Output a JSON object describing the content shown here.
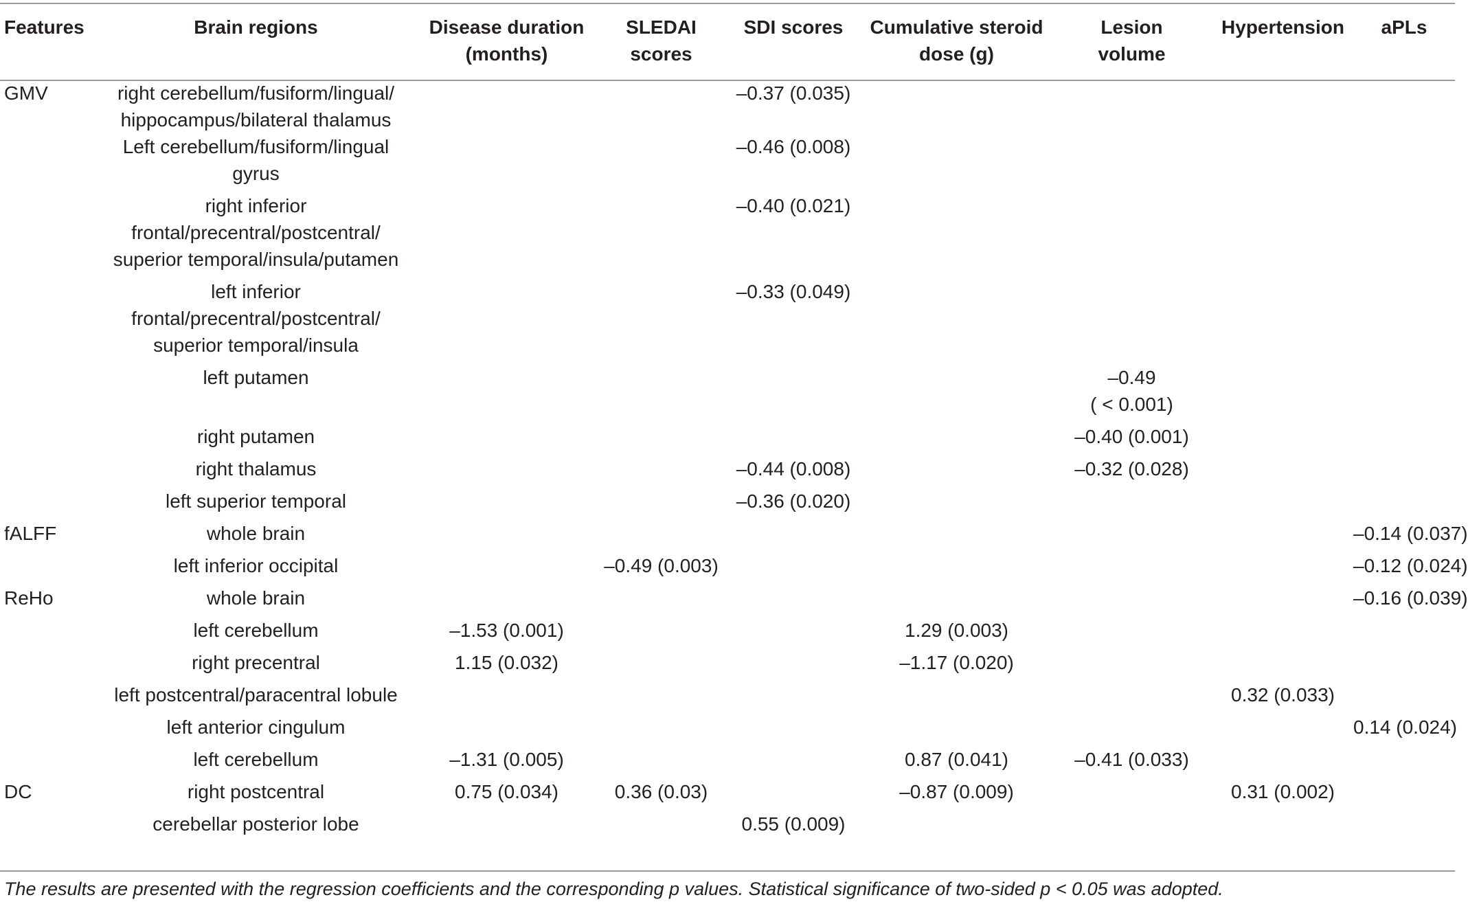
{
  "table": {
    "headers": [
      "Features",
      "Brain regions",
      "Disease duration\n(months)",
      "SLEDAI\nscores",
      "SDI scores",
      "Cumulative steroid\ndose (g)",
      "Lesion\nvolume",
      "Hypertension",
      "aPLs"
    ],
    "rows": [
      {
        "feature": "GMV",
        "region": "right cerebellum/fusiform/lingual/\nhippocampus/bilateral thalamus",
        "duration": "",
        "sledai": "",
        "sdi": "–0.37 (0.035)",
        "steroid": "",
        "lesion": "",
        "hypertension": "",
        "apls": ""
      },
      {
        "feature": "",
        "region": "Left cerebellum/fusiform/lingual\ngyrus",
        "duration": "",
        "sledai": "",
        "sdi": "–0.46 (0.008)",
        "steroid": "",
        "lesion": "",
        "hypertension": "",
        "apls": ""
      },
      {
        "feature": "",
        "region": "right inferior\nfrontal/precentral/postcentral/\nsuperior temporal/insula/putamen",
        "duration": "",
        "sledai": "",
        "sdi": "–0.40 (0.021)",
        "steroid": "",
        "lesion": "",
        "hypertension": "",
        "apls": ""
      },
      {
        "feature": "",
        "region": "left inferior\nfrontal/precentral/postcentral/\nsuperior temporal/insula",
        "duration": "",
        "sledai": "",
        "sdi": "–0.33 (0.049)",
        "steroid": "",
        "lesion": "",
        "hypertension": "",
        "apls": ""
      },
      {
        "feature": "",
        "region": "left putamen",
        "duration": "",
        "sledai": "",
        "sdi": "",
        "steroid": "",
        "lesion": "–0.49\n( < 0.001)",
        "hypertension": "",
        "apls": ""
      },
      {
        "feature": "",
        "region": "right putamen",
        "duration": "",
        "sledai": "",
        "sdi": "",
        "steroid": "",
        "lesion": "–0.40 (0.001)",
        "hypertension": "",
        "apls": ""
      },
      {
        "feature": "",
        "region": "right thalamus",
        "duration": "",
        "sledai": "",
        "sdi": "–0.44 (0.008)",
        "steroid": "",
        "lesion": "–0.32 (0.028)",
        "hypertension": "",
        "apls": ""
      },
      {
        "feature": "",
        "region": "left superior temporal",
        "duration": "",
        "sledai": "",
        "sdi": "–0.36 (0.020)",
        "steroid": "",
        "lesion": "",
        "hypertension": "",
        "apls": ""
      },
      {
        "feature": "fALFF",
        "region": "whole brain",
        "duration": "",
        "sledai": "",
        "sdi": "",
        "steroid": "",
        "lesion": "",
        "hypertension": "",
        "apls": "–0.14 (0.037)"
      },
      {
        "feature": "",
        "region": "left inferior occipital",
        "duration": "",
        "sledai": "–0.49 (0.003)",
        "sdi": "",
        "steroid": "",
        "lesion": "",
        "hypertension": "",
        "apls": "–0.12 (0.024)"
      },
      {
        "feature": "ReHo",
        "region": "whole brain",
        "duration": "",
        "sledai": "",
        "sdi": "",
        "steroid": "",
        "lesion": "",
        "hypertension": "",
        "apls": "–0.16 (0.039)"
      },
      {
        "feature": "",
        "region": "left cerebellum",
        "duration": "–1.53 (0.001)",
        "sledai": "",
        "sdi": "",
        "steroid": "1.29 (0.003)",
        "lesion": "",
        "hypertension": "",
        "apls": ""
      },
      {
        "feature": "",
        "region": "right precentral",
        "duration": "1.15 (0.032)",
        "sledai": "",
        "sdi": "",
        "steroid": "–1.17 (0.020)",
        "lesion": "",
        "hypertension": "",
        "apls": ""
      },
      {
        "feature": "",
        "region": "left postcentral/paracentral lobule",
        "duration": "",
        "sledai": "",
        "sdi": "",
        "steroid": "",
        "lesion": "",
        "hypertension": "0.32 (0.033)",
        "apls": ""
      },
      {
        "feature": "",
        "region": "left anterior cingulum",
        "duration": "",
        "sledai": "",
        "sdi": "",
        "steroid": "",
        "lesion": "",
        "hypertension": "",
        "apls": "0.14 (0.024)"
      },
      {
        "feature": "",
        "region": "left cerebellum",
        "duration": "–1.31 (0.005)",
        "sledai": "",
        "sdi": "",
        "steroid": "0.87 (0.041)",
        "lesion": "–0.41 (0.033)",
        "hypertension": "",
        "apls": ""
      },
      {
        "feature": "DC",
        "region": "right postcentral",
        "duration": "0.75 (0.034)",
        "sledai": "0.36 (0.03)",
        "sdi": "",
        "steroid": "–0.87 (0.009)",
        "lesion": "",
        "hypertension": "0.31 (0.002)",
        "apls": ""
      },
      {
        "feature": "",
        "region": "cerebellar posterior lobe",
        "duration": "",
        "sledai": "",
        "sdi": "0.55 (0.009)",
        "steroid": "",
        "lesion": "",
        "hypertension": "",
        "apls": ""
      }
    ]
  },
  "footnote": "The results are presented with the regression coefficients and the corresponding p values. Statistical significance of two-sided p < 0.05 was adopted."
}
